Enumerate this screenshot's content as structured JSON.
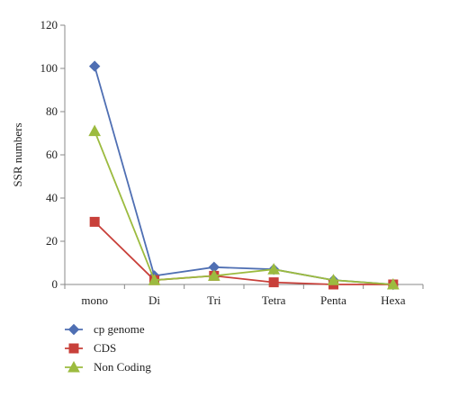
{
  "chart_data": {
    "type": "line",
    "title": "",
    "xlabel": "",
    "ylabel": "SSR numbers",
    "categories": [
      "mono",
      "Di",
      "Tri",
      "Tetra",
      "Penta",
      "Hexa"
    ],
    "ylim": [
      0,
      120
    ],
    "yticks": [
      0,
      20,
      40,
      60,
      80,
      100,
      120
    ],
    "grid": false,
    "legend_position": "bottom-left",
    "series": [
      {
        "name": "cp genome",
        "color": "#4f6fb3",
        "marker": "diamond",
        "values": [
          101,
          4,
          8,
          7,
          2,
          0
        ]
      },
      {
        "name": "CDS",
        "color": "#c8403a",
        "marker": "square",
        "values": [
          29,
          2,
          4,
          1,
          0,
          0
        ]
      },
      {
        "name": "Non Coding",
        "color": "#9cbb3f",
        "marker": "triangle",
        "values": [
          71,
          2,
          4,
          7,
          2,
          0
        ]
      }
    ]
  }
}
